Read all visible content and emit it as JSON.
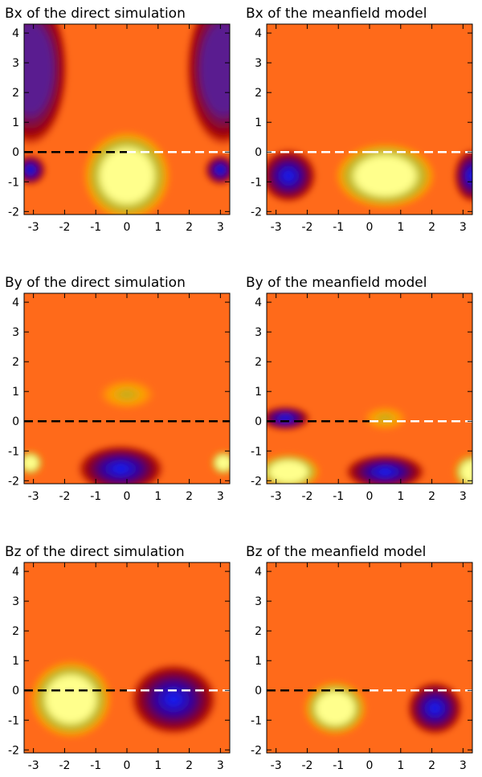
{
  "chart_data": [
    {
      "type": "heatmap",
      "title": "Bx of the direct simulation",
      "xlim": [
        -3.3,
        3.3
      ],
      "ylim": [
        -2.1,
        4.3
      ],
      "x_ticks": [
        -3,
        -2,
        -1,
        0,
        1,
        2,
        3
      ],
      "y_ticks": [
        -2,
        -1,
        0,
        1,
        2,
        3,
        4
      ],
      "dashed_line_y": 0,
      "dashed_line_colors_left_right": [
        "#000000",
        "#ffffff"
      ],
      "features": [
        {
          "x": 0.0,
          "y": -0.8,
          "sign": "positive",
          "color": "yellow",
          "rx": 1.4,
          "ry": 1.5
        },
        {
          "x": -3.1,
          "y": 2.8,
          "sign": "negative",
          "color": "purple",
          "rx": 1.2,
          "ry": 2.6
        },
        {
          "x": 3.1,
          "y": 2.8,
          "sign": "negative",
          "color": "purple",
          "rx": 1.2,
          "ry": 2.6
        },
        {
          "x": -3.1,
          "y": -0.6,
          "sign": "negative",
          "color": "blue",
          "rx": 0.5,
          "ry": 0.5
        },
        {
          "x": 3.0,
          "y": -0.6,
          "sign": "negative",
          "color": "blue",
          "rx": 0.5,
          "ry": 0.5
        }
      ]
    },
    {
      "type": "heatmap",
      "title": "Bx of the meanfield model",
      "xlim": [
        -3.3,
        3.3
      ],
      "ylim": [
        -2.1,
        4.3
      ],
      "x_ticks": [
        -3,
        -2,
        -1,
        0,
        1,
        2,
        3
      ],
      "y_ticks": [
        -2,
        -1,
        0,
        1,
        2,
        3,
        4
      ],
      "dashed_line_y": 0,
      "dashed_line_colors_left_right": [
        "#ffffff",
        "#ffffff"
      ],
      "features": [
        {
          "x": 0.5,
          "y": -0.8,
          "sign": "positive",
          "color": "yellow",
          "rx": 1.6,
          "ry": 1.1
        },
        {
          "x": -2.6,
          "y": -0.8,
          "sign": "negative",
          "color": "blue",
          "rx": 0.9,
          "ry": 0.9
        },
        {
          "x": 3.3,
          "y": -0.8,
          "sign": "negative",
          "color": "blue",
          "rx": 0.6,
          "ry": 0.9
        }
      ]
    },
    {
      "type": "heatmap",
      "title": "By of the direct simulation",
      "xlim": [
        -3.3,
        3.3
      ],
      "ylim": [
        -2.1,
        4.3
      ],
      "x_ticks": [
        -3,
        -2,
        -1,
        0,
        1,
        2,
        3
      ],
      "y_ticks": [
        -2,
        -1,
        0,
        1,
        2,
        3,
        4
      ],
      "dashed_line_y": 0,
      "dashed_line_colors_left_right": [
        "#000000",
        "#000000"
      ],
      "features": [
        {
          "x": 0.0,
          "y": 0.9,
          "sign": "positive",
          "color": "olive",
          "rx": 0.9,
          "ry": 0.5
        },
        {
          "x": -0.2,
          "y": -1.6,
          "sign": "negative",
          "color": "blue",
          "rx": 1.4,
          "ry": 0.8
        },
        {
          "x": -3.1,
          "y": -1.4,
          "sign": "positive",
          "color": "yellow",
          "rx": 0.4,
          "ry": 0.4
        },
        {
          "x": 3.1,
          "y": -1.4,
          "sign": "positive",
          "color": "yellow",
          "rx": 0.4,
          "ry": 0.4
        }
      ]
    },
    {
      "type": "heatmap",
      "title": "By of the meanfield model",
      "xlim": [
        -3.3,
        3.3
      ],
      "ylim": [
        -2.1,
        4.3
      ],
      "x_ticks": [
        -3,
        -2,
        -1,
        0,
        1,
        2,
        3
      ],
      "y_ticks": [
        -2,
        -1,
        0,
        1,
        2,
        3,
        4
      ],
      "dashed_line_y": 0,
      "dashed_line_colors_left_right": [
        "#000000",
        "#ffffff"
      ],
      "features": [
        {
          "x": 0.5,
          "y": -1.7,
          "sign": "negative",
          "color": "blue",
          "rx": 1.3,
          "ry": 0.6
        },
        {
          "x": -2.6,
          "y": -1.7,
          "sign": "positive",
          "color": "yellow",
          "rx": 1.0,
          "ry": 0.6
        },
        {
          "x": 3.3,
          "y": -1.7,
          "sign": "positive",
          "color": "yellow",
          "rx": 0.6,
          "ry": 0.6
        },
        {
          "x": 0.5,
          "y": 0.1,
          "sign": "positive",
          "color": "olive",
          "rx": 0.7,
          "ry": 0.4
        },
        {
          "x": -2.7,
          "y": 0.1,
          "sign": "negative",
          "color": "blue",
          "rx": 0.8,
          "ry": 0.4
        }
      ]
    },
    {
      "type": "heatmap",
      "title": "Bz of the direct simulation",
      "xlim": [
        -3.3,
        3.3
      ],
      "ylim": [
        -2.1,
        4.3
      ],
      "x_ticks": [
        -3,
        -2,
        -1,
        0,
        1,
        2,
        3
      ],
      "y_ticks": [
        -2,
        -1,
        0,
        1,
        2,
        3,
        4
      ],
      "dashed_line_y": 0,
      "dashed_line_colors_left_right": [
        "#000000",
        "#ffffff"
      ],
      "features": [
        {
          "x": -1.8,
          "y": -0.3,
          "sign": "positive",
          "color": "yellow",
          "rx": 1.3,
          "ry": 1.3
        },
        {
          "x": 1.5,
          "y": -0.3,
          "sign": "negative",
          "color": "blue",
          "rx": 1.4,
          "ry": 1.2
        }
      ]
    },
    {
      "type": "heatmap",
      "title": "Bz of the meanfield model",
      "xlim": [
        -3.3,
        3.3
      ],
      "ylim": [
        -2.1,
        4.3
      ],
      "x_ticks": [
        -3,
        -2,
        -1,
        0,
        1,
        2,
        3
      ],
      "y_ticks": [
        -2,
        -1,
        0,
        1,
        2,
        3,
        4
      ],
      "dashed_line_y": 0,
      "dashed_line_colors_left_right": [
        "#000000",
        "#ffffff"
      ],
      "features": [
        {
          "x": -1.1,
          "y": -0.6,
          "sign": "positive",
          "color": "yellow",
          "rx": 1.0,
          "ry": 0.9
        },
        {
          "x": 2.1,
          "y": -0.6,
          "sign": "negative",
          "color": "blue",
          "rx": 0.9,
          "ry": 0.9
        }
      ]
    }
  ],
  "colors": {
    "background": "#ff6a1a",
    "positive_outer": "#ffa000",
    "positive_mid": "#b8b020",
    "positive_core": "#ffff8c",
    "negative_outer": "#a00000",
    "negative_mid": "#3a0090",
    "negative_core": "#1020ff",
    "purple": "#5a1a90"
  }
}
